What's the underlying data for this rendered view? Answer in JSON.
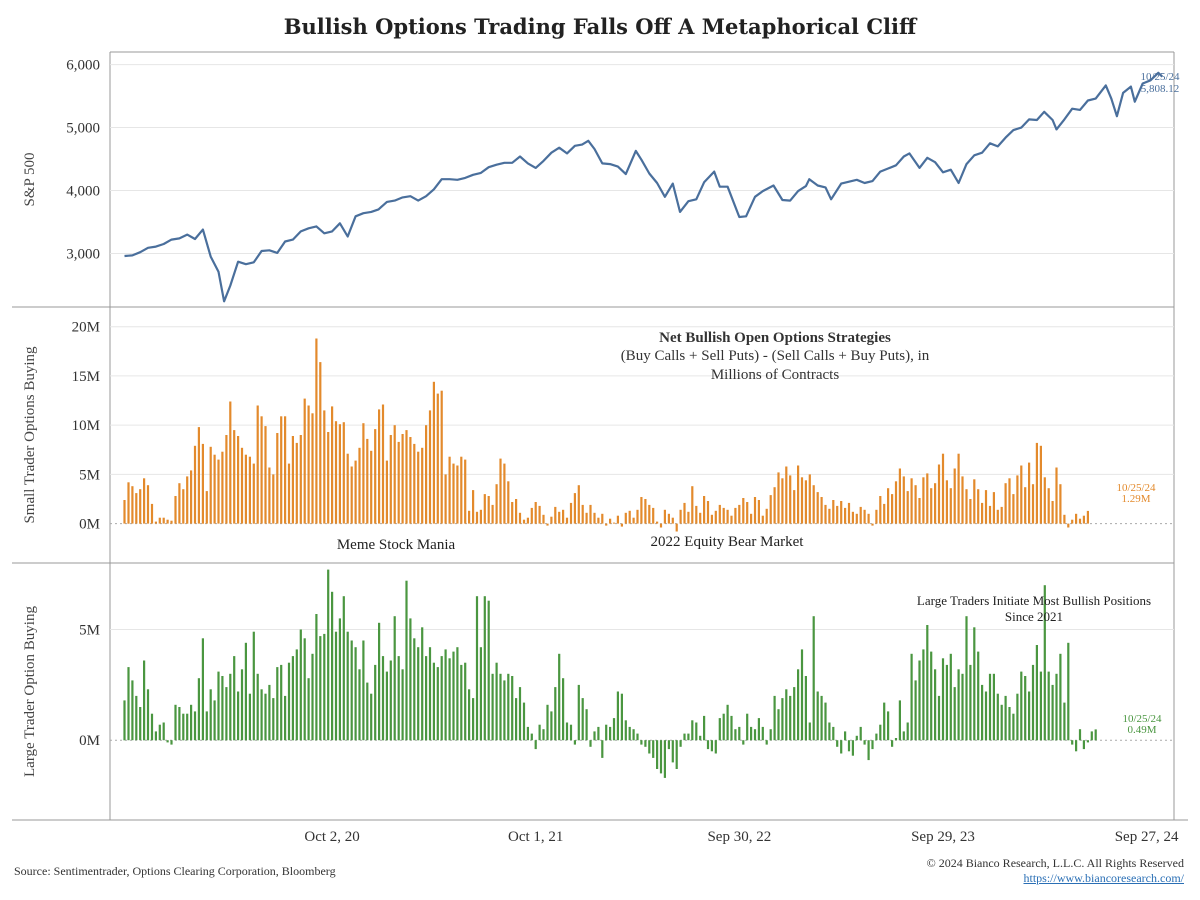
{
  "title": "Bullish Options Trading Falls Off A Metaphorical Cliff",
  "footer": {
    "source": "Source: Sentimentrader, Options Clearing Corporation, Bloomberg",
    "copyright": "© 2024 Bianco Research, L.L.C. All Rights Reserved",
    "link": "https://www.biancoresearch.com/"
  },
  "colors": {
    "spx": "#4a6f9c",
    "small": "#e38a2c",
    "large": "#4a9640",
    "axis": "#999999",
    "grid": "#e6e6e6"
  },
  "chart_data": [
    {
      "type": "line",
      "ylabel": "S&P 500",
      "ylim": [
        2150,
        6200
      ],
      "yticks": [
        3000,
        4000,
        5000,
        6000
      ],
      "ytick_labels": [
        "3,000",
        "4,000",
        "5,000",
        "6,000"
      ],
      "xlim": [
        "2019-09-01",
        "2024-11-15"
      ],
      "xticks": [
        "2020-10-02",
        "2021-10-01",
        "2022-09-30",
        "2023-09-29",
        "2024-09-27"
      ],
      "xtick_labels": [
        "Oct 2, 20",
        "Oct 1, 21",
        "Sep 30, 22",
        "Sep 29, 23",
        "Sep 27, 24"
      ],
      "end_label": [
        "10/25/24",
        "5,808.12"
      ],
      "series": [
        {
          "x": [
            "2019-09-27",
            "2019-10-11",
            "2019-10-25",
            "2019-11-08",
            "2019-11-22",
            "2019-12-06",
            "2019-12-20",
            "2020-01-03",
            "2020-01-17",
            "2020-01-31",
            "2020-02-14",
            "2020-02-28",
            "2020-03-13",
            "2020-03-23",
            "2020-04-03",
            "2020-04-17",
            "2020-05-01",
            "2020-05-15",
            "2020-05-29",
            "2020-06-12",
            "2020-06-26",
            "2020-07-10",
            "2020-07-24",
            "2020-08-07",
            "2020-08-21",
            "2020-09-04",
            "2020-09-18",
            "2020-10-02",
            "2020-10-16",
            "2020-10-30",
            "2020-11-13",
            "2020-11-27",
            "2020-12-11",
            "2020-12-24",
            "2021-01-08",
            "2021-01-22",
            "2021-02-05",
            "2021-02-19",
            "2021-03-05",
            "2021-03-19",
            "2021-04-02",
            "2021-04-16",
            "2021-04-30",
            "2021-05-14",
            "2021-05-28",
            "2021-06-11",
            "2021-06-25",
            "2021-07-09",
            "2021-07-23",
            "2021-08-06",
            "2021-08-20",
            "2021-09-03",
            "2021-09-17",
            "2021-10-01",
            "2021-10-15",
            "2021-10-29",
            "2021-11-12",
            "2021-11-26",
            "2021-12-10",
            "2021-12-23",
            "2022-01-03",
            "2022-01-14",
            "2022-01-28",
            "2022-02-11",
            "2022-02-25",
            "2022-03-11",
            "2022-03-29",
            "2022-04-08",
            "2022-04-22",
            "2022-05-06",
            "2022-05-20",
            "2022-06-03",
            "2022-06-16",
            "2022-07-01",
            "2022-07-15",
            "2022-07-29",
            "2022-08-16",
            "2022-08-26",
            "2022-09-09",
            "2022-09-30",
            "2022-10-12",
            "2022-10-28",
            "2022-11-11",
            "2022-11-30",
            "2022-12-16",
            "2022-12-30",
            "2023-01-13",
            "2023-01-27",
            "2023-02-02",
            "2023-02-17",
            "2023-03-03",
            "2023-03-13",
            "2023-03-31",
            "2023-04-14",
            "2023-04-28",
            "2023-05-12",
            "2023-05-26",
            "2023-06-09",
            "2023-06-23",
            "2023-07-07",
            "2023-07-21",
            "2023-07-31",
            "2023-08-18",
            "2023-09-01",
            "2023-09-15",
            "2023-09-29",
            "2023-10-13",
            "2023-10-27",
            "2023-11-10",
            "2023-11-24",
            "2023-12-08",
            "2023-12-22",
            "2024-01-05",
            "2024-01-19",
            "2024-02-02",
            "2024-02-16",
            "2024-03-01",
            "2024-03-15",
            "2024-03-28",
            "2024-04-12",
            "2024-04-19",
            "2024-05-03",
            "2024-05-17",
            "2024-05-31",
            "2024-06-14",
            "2024-06-28",
            "2024-07-16",
            "2024-07-26",
            "2024-08-05",
            "2024-08-16",
            "2024-08-30",
            "2024-09-06",
            "2024-09-20",
            "2024-10-04",
            "2024-10-18",
            "2024-10-25"
          ],
          "y": [
            2960,
            2970,
            3020,
            3090,
            3110,
            3150,
            3220,
            3240,
            3300,
            3230,
            3380,
            2950,
            2710,
            2240,
            2490,
            2870,
            2830,
            2860,
            3040,
            3050,
            3010,
            3190,
            3220,
            3350,
            3400,
            3430,
            3320,
            3350,
            3480,
            3270,
            3590,
            3640,
            3660,
            3700,
            3820,
            3840,
            3890,
            3910,
            3840,
            3910,
            4020,
            4180,
            4180,
            4170,
            4200,
            4250,
            4280,
            4370,
            4410,
            4440,
            4440,
            4540,
            4430,
            4360,
            4470,
            4600,
            4680,
            4590,
            4710,
            4730,
            4790,
            4660,
            4430,
            4420,
            4380,
            4260,
            4630,
            4490,
            4270,
            4120,
            3900,
            4110,
            3660,
            3830,
            3860,
            4130,
            4300,
            4060,
            4060,
            3580,
            3590,
            3900,
            3990,
            4080,
            3850,
            3840,
            3990,
            4070,
            4180,
            4080,
            4050,
            3860,
            4110,
            4140,
            4170,
            4120,
            4150,
            4300,
            4350,
            4400,
            4540,
            4590,
            4360,
            4520,
            4450,
            4290,
            4330,
            4120,
            4420,
            4560,
            4600,
            4750,
            4700,
            4840,
            4960,
            5000,
            5130,
            5120,
            5250,
            5120,
            4970,
            5130,
            5300,
            5280,
            5430,
            5460,
            5670,
            5460,
            5180,
            5550,
            5650,
            5410,
            5700,
            5750,
            5870,
            5808
          ]
        }
      ]
    },
    {
      "type": "bar",
      "ylabel": "Small Trader Options Buying",
      "ylim": [
        -4,
        22
      ],
      "yticks": [
        0,
        5,
        10,
        15,
        20
      ],
      "ytick_labels": [
        "0M",
        "5M",
        "10M",
        "15M",
        "20M"
      ],
      "legend_title": "Net Bullish Open Options Strategies",
      "legend_sub": [
        "(Buy Calls + Sell Puts) - (Sell Calls + Buy Puts), in",
        "Millions of Contracts"
      ],
      "annotations": [
        "Meme Stock Mania",
        "2022 Equity Bear Market"
      ],
      "end_label": [
        "10/25/24",
        "1.29M"
      ],
      "x_start": "2019-09-27",
      "x_step_days": 7,
      "values": [
        2.4,
        4.2,
        3.8,
        3.1,
        3.5,
        4.6,
        3.9,
        2.0,
        0.2,
        0.6,
        0.6,
        0.4,
        0.3,
        2.8,
        4.1,
        3.5,
        4.8,
        5.4,
        7.9,
        9.8,
        8.1,
        3.3,
        7.8,
        7.0,
        6.5,
        7.3,
        9.0,
        12.4,
        9.5,
        8.9,
        7.7,
        7.0,
        6.8,
        6.1,
        12.0,
        10.9,
        9.9,
        5.7,
        5.0,
        9.2,
        10.9,
        10.9,
        6.1,
        8.9,
        8.2,
        9.0,
        12.7,
        12.0,
        11.2,
        18.8,
        16.4,
        11.5,
        9.3,
        11.9,
        10.4,
        10.1,
        10.3,
        7.1,
        5.8,
        6.4,
        7.7,
        10.2,
        8.6,
        7.4,
        9.6,
        11.6,
        12.1,
        6.4,
        9.0,
        10.0,
        8.3,
        9.1,
        9.5,
        8.8,
        8.1,
        7.3,
        7.7,
        10.0,
        11.5,
        14.4,
        13.2,
        13.5,
        5.0,
        6.8,
        6.1,
        5.9,
        6.8,
        6.5,
        1.3,
        3.4,
        1.2,
        1.4,
        3.0,
        2.8,
        1.9,
        4.0,
        6.6,
        6.1,
        4.3,
        2.2,
        2.5,
        1.1,
        0.4,
        0.6,
        1.6,
        2.2,
        1.8,
        0.9,
        -0.2,
        0.7,
        1.7,
        1.2,
        1.4,
        0.6,
        2.1,
        3.1,
        3.9,
        1.9,
        1.1,
        1.9,
        1.1,
        0.6,
        1.0,
        -0.2,
        0.5,
        0.1,
        0.8,
        -0.3,
        1.1,
        1.3,
        0.6,
        1.4,
        2.7,
        2.5,
        1.9,
        1.6,
        0.2,
        -0.4,
        1.4,
        1.0,
        0.6,
        -0.8,
        1.4,
        2.1,
        1.2,
        3.8,
        1.8,
        1.1,
        2.8,
        2.3,
        0.9,
        1.3,
        1.9,
        1.6,
        1.4,
        0.8,
        1.6,
        1.9,
        2.6,
        2.2,
        1.0,
        2.7,
        2.4,
        0.8,
        1.5,
        2.9,
        3.7,
        5.2,
        4.6,
        5.8,
        4.9,
        3.4,
        5.9,
        4.7,
        4.4,
        5.0,
        3.9,
        3.2,
        2.7,
        1.9,
        1.5,
        2.4,
        1.8,
        2.3,
        1.6,
        2.1,
        1.2,
        1.0,
        1.7,
        1.4,
        1.0,
        -0.2,
        1.4,
        2.8,
        2.0,
        3.6,
        3.0,
        4.3,
        5.6,
        4.8,
        3.3,
        4.6,
        3.9,
        2.6,
        4.7,
        5.1,
        3.6,
        4.1,
        6.0,
        7.1,
        4.4,
        3.6,
        5.6,
        7.1,
        4.8,
        3.5,
        2.5,
        4.5,
        3.5,
        2.1,
        3.4,
        1.8,
        3.2,
        1.4,
        1.7,
        4.1,
        4.6,
        3.0,
        4.9,
        5.9,
        3.7,
        6.2,
        4.0,
        8.2,
        7.9,
        4.7,
        3.6,
        2.3,
        5.7,
        4.0,
        0.9,
        -0.4,
        0.4,
        1.0,
        0.5,
        0.8,
        1.29
      ]
    },
    {
      "type": "bar",
      "ylabel": "Large Trader Option Buying",
      "ylim": [
        -3.6,
        8.0
      ],
      "yticks": [
        0,
        5
      ],
      "ytick_labels": [
        "0M",
        "5M"
      ],
      "annotations": [
        "Large Traders Initiate Most Bullish Positions",
        "Since 2021"
      ],
      "end_label": [
        "10/25/24",
        "0.49M"
      ],
      "x_start": "2019-09-27",
      "x_step_days": 7,
      "values": [
        1.8,
        3.3,
        2.7,
        2.0,
        1.5,
        3.6,
        2.3,
        1.2,
        0.4,
        0.7,
        0.8,
        -0.1,
        -0.2,
        1.6,
        1.5,
        1.2,
        1.2,
        1.6,
        1.3,
        2.8,
        4.6,
        1.3,
        2.3,
        1.8,
        3.1,
        2.9,
        2.4,
        3.0,
        3.8,
        2.2,
        3.2,
        4.4,
        2.1,
        4.9,
        3.0,
        2.3,
        2.1,
        2.5,
        1.9,
        3.3,
        3.4,
        2.0,
        3.5,
        3.8,
        4.1,
        5.0,
        4.6,
        2.8,
        3.9,
        5.7,
        4.7,
        4.8,
        7.7,
        6.7,
        4.9,
        5.5,
        6.5,
        4.9,
        4.5,
        4.2,
        3.2,
        4.5,
        2.6,
        2.1,
        3.4,
        5.3,
        3.8,
        3.1,
        3.6,
        5.6,
        3.8,
        3.2,
        7.2,
        5.5,
        4.6,
        4.2,
        5.1,
        3.8,
        4.2,
        3.5,
        3.3,
        3.8,
        4.1,
        3.7,
        4.0,
        4.2,
        3.4,
        3.5,
        2.3,
        1.9,
        6.5,
        4.2,
        6.5,
        6.3,
        3.0,
        3.5,
        3.0,
        2.7,
        3.0,
        2.9,
        1.9,
        2.4,
        1.7,
        0.6,
        0.3,
        -0.4,
        0.7,
        0.5,
        1.6,
        1.3,
        2.4,
        3.9,
        2.8,
        0.8,
        0.7,
        -0.2,
        2.5,
        1.9,
        1.4,
        -0.3,
        0.4,
        0.6,
        -0.8,
        0.7,
        0.6,
        1.0,
        2.2,
        2.1,
        0.9,
        0.6,
        0.5,
        0.3,
        -0.2,
        -0.3,
        -0.6,
        -0.8,
        -1.3,
        -1.5,
        -1.7,
        -0.4,
        -1.0,
        -1.3,
        -0.3,
        0.3,
        0.3,
        0.9,
        0.8,
        0.2,
        1.1,
        -0.4,
        -0.5,
        -0.6,
        1.0,
        1.2,
        1.6,
        1.1,
        0.5,
        0.6,
        -0.2,
        1.2,
        0.6,
        0.5,
        1.0,
        0.6,
        -0.2,
        0.5,
        2.0,
        1.4,
        1.9,
        2.3,
        2.0,
        2.4,
        3.2,
        4.1,
        2.9,
        0.8,
        5.6,
        2.2,
        2.0,
        1.7,
        0.8,
        0.6,
        -0.3,
        -0.6,
        0.4,
        -0.5,
        -0.7,
        0.2,
        0.6,
        -0.2,
        -0.9,
        -0.4,
        0.3,
        0.7,
        1.7,
        1.3,
        -0.3,
        0.1,
        1.8,
        0.4,
        0.8,
        3.9,
        2.7,
        3.6,
        4.1,
        5.2,
        4.0,
        3.2,
        2.0,
        3.7,
        3.4,
        3.9,
        2.4,
        3.2,
        3.0,
        5.6,
        3.4,
        5.1,
        4.0,
        2.5,
        2.2,
        3.0,
        3.0,
        2.1,
        1.6,
        2.0,
        1.5,
        1.2,
        2.1,
        3.1,
        2.9,
        2.2,
        3.4,
        4.3,
        3.1,
        7.0,
        3.1,
        2.5,
        3.0,
        3.9,
        1.7,
        4.4,
        -0.2,
        -0.5,
        0.5,
        -0.4,
        -0.1,
        0.4,
        0.49
      ]
    }
  ]
}
